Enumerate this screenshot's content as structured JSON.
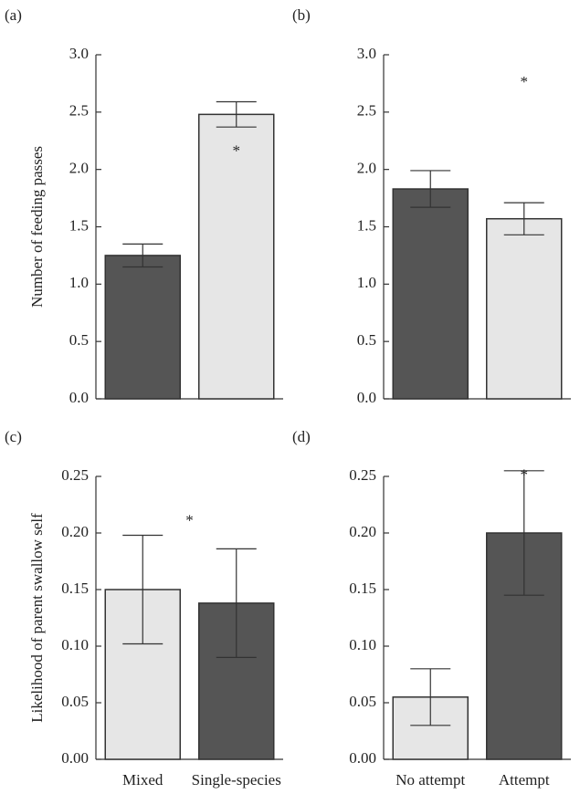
{
  "chart_data": [
    {
      "type": "bar",
      "panel": "(a)",
      "ylabel": "Number of feeding passes",
      "categories": [
        null,
        null
      ],
      "values": [
        1.25,
        2.48
      ],
      "errors": [
        0.1,
        0.11
      ],
      "colors": [
        "#555555",
        "#e6e6e6"
      ],
      "ylim": [
        0,
        3.0
      ],
      "yticks": [
        {
          "value": 0,
          "label": "0.0"
        },
        {
          "value": 0.5,
          "label": "0.5"
        },
        {
          "value": 1,
          "label": "1.0"
        },
        {
          "value": 1.5,
          "label": "1.5"
        },
        {
          "value": 2,
          "label": "2.0"
        },
        {
          "value": 2.5,
          "label": "2.5"
        },
        {
          "value": 3,
          "label": "3.0"
        }
      ],
      "annotations": [
        {
          "text": "*",
          "x": 1,
          "y": 2.2
        }
      ]
    },
    {
      "type": "bar",
      "panel": "(b)",
      "categories": [
        null,
        null
      ],
      "values": [
        1.83,
        1.57
      ],
      "errors": [
        0.16,
        0.14
      ],
      "colors": [
        "#555555",
        "#e6e6e6"
      ],
      "ylim": [
        0,
        3.0
      ],
      "yticks": [
        {
          "value": 0,
          "label": "0.0"
        },
        {
          "value": 0.5,
          "label": "0.5"
        },
        {
          "value": 1,
          "label": "1.0"
        },
        {
          "value": 1.5,
          "label": "1.5"
        },
        {
          "value": 2,
          "label": "2.0"
        },
        {
          "value": 2.5,
          "label": "2.5"
        },
        {
          "value": 3,
          "label": "3.0"
        }
      ],
      "annotations": [
        {
          "text": "*",
          "x": 1,
          "y": 2.8
        }
      ]
    },
    {
      "type": "bar",
      "panel": "(c)",
      "ylabel": "Likelihood of parent swallow self",
      "categories": [
        "Mixed",
        "Single-species"
      ],
      "values": [
        0.15,
        0.138
      ],
      "errors": [
        0.048,
        0.048
      ],
      "colors": [
        "#e6e6e6",
        "#555555"
      ],
      "ylim": [
        0,
        0.25
      ],
      "yticks": [
        {
          "value": 0,
          "label": "0.00"
        },
        {
          "value": 0.05,
          "label": "0.05"
        },
        {
          "value": 0.1,
          "label": "0.10"
        },
        {
          "value": 0.15,
          "label": "0.15"
        },
        {
          "value": 0.2,
          "label": "0.20"
        },
        {
          "value": 0.25,
          "label": "0.25"
        }
      ],
      "annotations": [
        {
          "text": "*",
          "x": 0.5,
          "y": 0.215
        }
      ]
    },
    {
      "type": "bar",
      "panel": "(d)",
      "categories": [
        "No attempt",
        "Attempt"
      ],
      "values": [
        0.055,
        0.2
      ],
      "errors": [
        0.025,
        0.055
      ],
      "colors": [
        "#e6e6e6",
        "#555555"
      ],
      "ylim": [
        0,
        0.25
      ],
      "yticks": [
        {
          "value": 0,
          "label": "0.00"
        },
        {
          "value": 0.05,
          "label": "0.05"
        },
        {
          "value": 0.1,
          "label": "0.10"
        },
        {
          "value": 0.15,
          "label": "0.15"
        },
        {
          "value": 0.2,
          "label": "0.20"
        },
        {
          "value": 0.25,
          "label": "0.25"
        }
      ],
      "annotations": [
        {
          "text": "*",
          "x": 1,
          "y": 0.255
        }
      ]
    }
  ]
}
